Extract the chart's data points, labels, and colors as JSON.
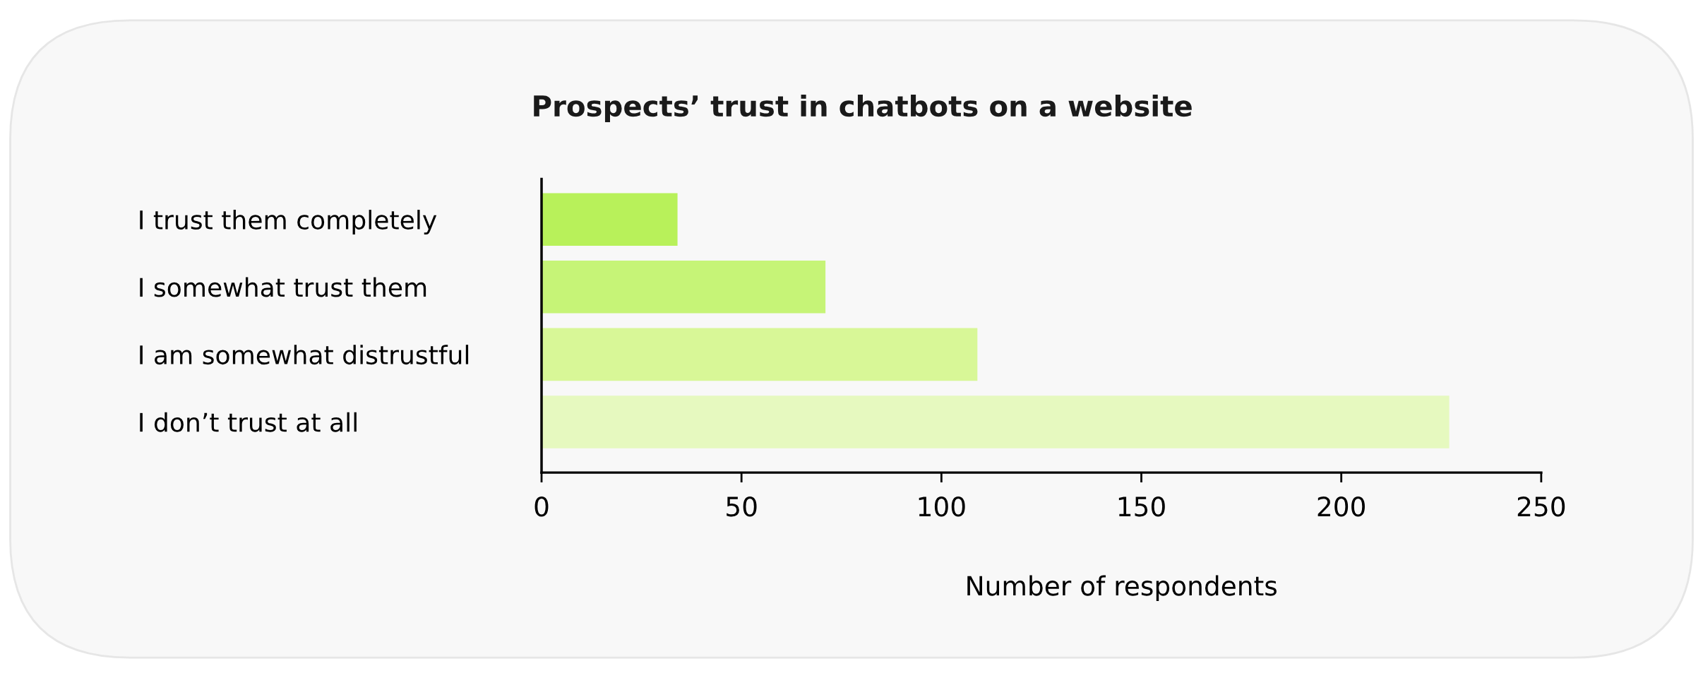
{
  "chart_data": {
    "type": "bar",
    "orientation": "horizontal",
    "title": "Prospects’ trust in chatbots on a website",
    "categories": [
      "I trust them completely",
      "I somewhat trust them",
      "I am somewhat distrustful",
      "I don’t trust at all"
    ],
    "values": [
      34,
      71,
      109,
      227
    ],
    "colors": [
      "#b8f15a",
      "#c6f477",
      "#d8f797",
      "#e6f9bf"
    ],
    "xlabel": "Number of respondents",
    "xlim": [
      0,
      250
    ],
    "xticks": [
      0,
      50,
      100,
      150,
      200,
      250
    ],
    "grid": false,
    "legend": false
  }
}
